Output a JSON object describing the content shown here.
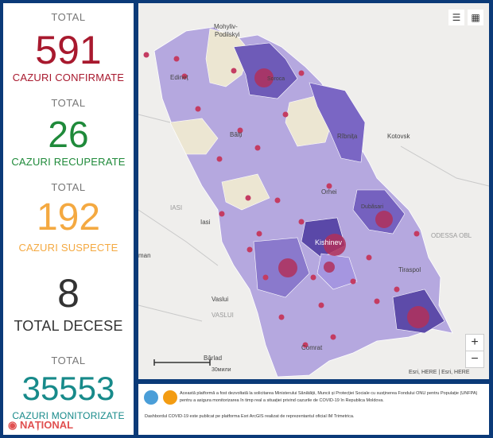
{
  "stats": {
    "confirmed": {
      "label": "TOTAL",
      "value": "591",
      "caption": "CAZURI CONFIRMATE",
      "color": "#a8192e"
    },
    "recovered": {
      "label": "TOTAL",
      "value": "26",
      "caption": "CAZURI RECUPERATE",
      "color": "#1f8a3a"
    },
    "suspect": {
      "label": "TOTAL",
      "value": "192",
      "caption": "CAZURI SUSPECTE",
      "color": "#f4a941"
    },
    "deaths": {
      "value": "8",
      "caption": "TOTAL DECESE",
      "color": "#333333"
    },
    "monitored": {
      "label": "TOTAL",
      "value": "35553",
      "caption": "CAZURI MONITORIZATE",
      "color": "#178a8a"
    }
  },
  "logo": {
    "text": "NAȚIONAL"
  },
  "map": {
    "places": {
      "mohyliv": "Mohyliv-",
      "podilskyi": "Podilskyi",
      "edinet": "Edineț",
      "soroca": "Soroca",
      "balti": "Bălți",
      "ribnita": "Rîbnița",
      "kotovsk": "Kotovsk",
      "orhei": "Orhei",
      "dubasari": "Dubăsari",
      "iasi_caps": "IASI",
      "iasi": "Iasi",
      "chisinau": "Kishinev",
      "tiraspol": "Tiraspol",
      "odessa": "ODESSA OBL",
      "vaslui": "Vaslui",
      "vaslui_caps": "VASLUI",
      "comrat": "Comrat",
      "barlad": "Bârlad",
      "man": "man"
    },
    "scale_label": "30мили",
    "attribution": "Esri, HERE | Esri, HERE",
    "zoom_in": "+",
    "zoom_out": "−",
    "tools": {
      "list_icon": "list-icon",
      "qr_icon": "qr-code-icon"
    }
  },
  "footer": {
    "text1": "Această platformă a fost dezvoltată la solicitarea Ministerului Sănătății, Muncii și Protecției Sociale cu susținerea Fondului ONU pentru Populație (UNFPA) pentru a asigura monitorizarea în timp real a situației privind cazurile de COVID-19 în Republica Moldova.",
    "text2": "Dashbordul COVID-19 este publicat pe platforma Esri ArcGIS realizat de reprezentantul oficial IM Trimetrica."
  }
}
